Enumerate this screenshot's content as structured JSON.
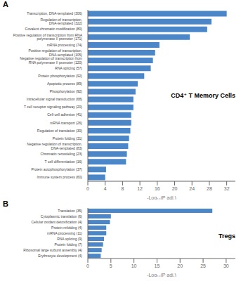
{
  "chart_data": [
    {
      "type": "bar",
      "orientation": "horizontal",
      "title": "A",
      "annotations": [
        "CD4⁺ T Memory Cells"
      ],
      "x_label": "-Log₁₀(P adj.)",
      "categories": [
        "Transcription, DNA-templated (306)",
        "Regulation of transcription,\nDNA-templated (322)",
        "Covalent chromatin modification (80)",
        "Positive regulation of transcription from RNA\npolymerase II promoter (171)",
        "mRNA processing (74)",
        "Positive regulation of transcription,\nDNA-templated (105)",
        "Negative regulation of transcription from\nRNA polymerase II promoter (120)",
        "RNA splicing (57)",
        "Protein phosphorylation (92)",
        "Apoptotic process (89)",
        "Phosphorylation (92)",
        "Intracellular signal transduction (68)",
        "T cell receptor signaling pathway (20)",
        "Cell-cell adhesion (41)",
        "mRNA transport (26)",
        "Regulation of translation (30)",
        "Protein folding (31)",
        "Negative regulation of transcription,\nDNA-templated (83)",
        "Chromatin remodeling (23)",
        "T cell differentiation (16)",
        "Protein autophosphorylation (37)",
        "Immune system process (60)"
      ],
      "values": [
        32.0,
        28.5,
        27.5,
        23.5,
        16.5,
        15.5,
        15.0,
        14.5,
        13.0,
        11.5,
        11.0,
        10.5,
        10.5,
        10.0,
        10.0,
        9.8,
        9.5,
        9.3,
        9.0,
        8.8,
        4.2,
        4.0
      ],
      "color": "#4a86c8",
      "xlim": [
        0,
        34
      ],
      "xticks": [
        0,
        4,
        8,
        12,
        16,
        20,
        24,
        28,
        32
      ]
    },
    {
      "type": "bar",
      "orientation": "horizontal",
      "title": "B",
      "annotations": [
        "Tregs"
      ],
      "x_label": "-Log₁₀(P adj.)",
      "categories": [
        "Translation (35)",
        "Cytoplasmic translation (6)",
        "Cellular oxidant detoxification (4)",
        "Protein refolding (4)",
        "mRNA processing (11)",
        "RNA splicing (9)",
        "Protein folding (7)",
        "Ribosomal large subunit assembly (4)",
        "Erythrocyte development (4)"
      ],
      "values": [
        27.0,
        5.0,
        4.8,
        4.0,
        4.0,
        3.5,
        3.3,
        3.0,
        2.8
      ],
      "color": "#4a86c8",
      "xlim": [
        0,
        32
      ],
      "xticks": [
        0,
        5,
        10,
        15,
        20,
        25,
        30
      ]
    }
  ]
}
